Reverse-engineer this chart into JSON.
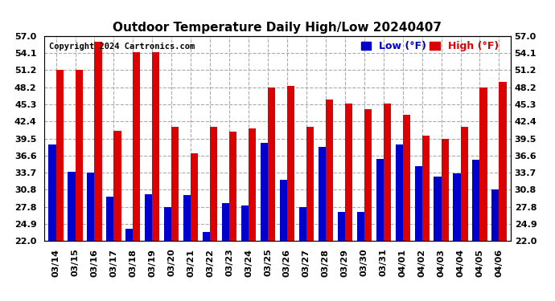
{
  "title": "Outdoor Temperature Daily High/Low 20240407",
  "copyright": "Copyright 2024 Cartronics.com",
  "legend_low": "Low (°F)",
  "legend_high": "High (°F)",
  "low_color": "#0000cc",
  "high_color": "#dd0000",
  "ylim": [
    22.0,
    57.0
  ],
  "yticks": [
    22.0,
    24.9,
    27.8,
    30.8,
    33.7,
    36.6,
    39.5,
    42.4,
    45.3,
    48.2,
    51.2,
    54.1,
    57.0
  ],
  "dates": [
    "03/14",
    "03/15",
    "03/16",
    "03/17",
    "03/18",
    "03/19",
    "03/20",
    "03/21",
    "03/22",
    "03/23",
    "03/24",
    "03/25",
    "03/26",
    "03/27",
    "03/28",
    "03/29",
    "03/30",
    "03/31",
    "04/01",
    "04/02",
    "04/03",
    "04/04",
    "04/05",
    "04/06"
  ],
  "highs": [
    51.2,
    51.2,
    56.0,
    40.8,
    54.3,
    54.2,
    41.5,
    37.0,
    41.5,
    40.7,
    41.2,
    48.2,
    48.5,
    41.5,
    46.2,
    45.5,
    44.5,
    45.5,
    43.5,
    40.0,
    39.5,
    41.5,
    48.2,
    49.2
  ],
  "lows": [
    38.5,
    33.8,
    33.7,
    29.5,
    24.0,
    30.0,
    27.8,
    29.8,
    23.5,
    28.5,
    28.0,
    38.8,
    32.5,
    27.8,
    38.0,
    27.0,
    27.0,
    36.0,
    38.5,
    34.8,
    33.0,
    33.5,
    35.8,
    30.8
  ],
  "background_color": "#ffffff",
  "grid_color": "#aaaaaa",
  "bar_width": 0.38,
  "title_fontsize": 11,
  "tick_fontsize": 8,
  "legend_fontsize": 9,
  "copyright_fontsize": 7.5
}
